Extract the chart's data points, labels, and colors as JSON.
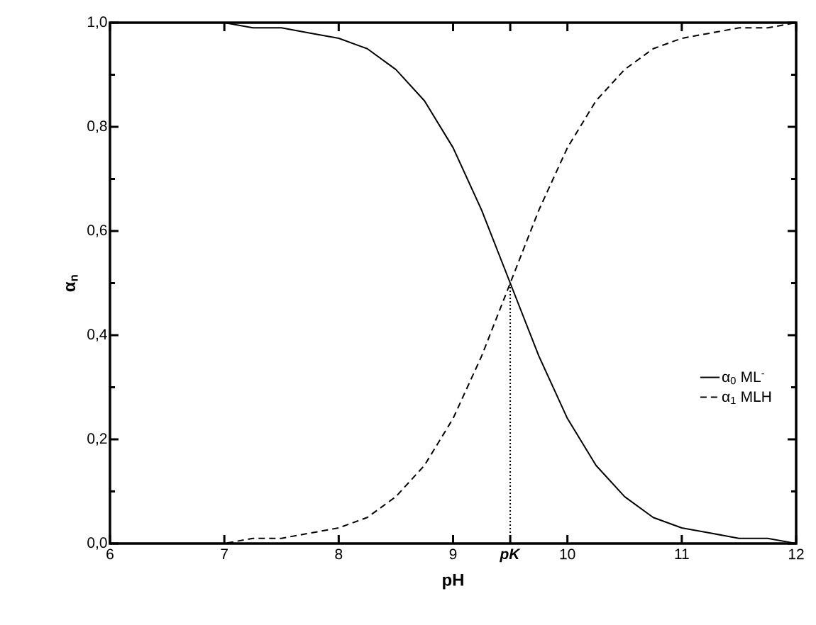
{
  "chart_data": {
    "type": "line",
    "xlabel": "pH",
    "ylabel": "α$_{n}$",
    "x": [
      6,
      6.25,
      6.5,
      6.75,
      7,
      7.25,
      7.5,
      7.75,
      8,
      8.25,
      8.5,
      8.75,
      9,
      9.25,
      9.5,
      9.75,
      10,
      10.25,
      10.5,
      10.75,
      11,
      11.25,
      11.5,
      11.75,
      12
    ],
    "series": [
      {
        "name": "α$_{0}$ ML$^{-}$",
        "color": "#000000",
        "line_style": "solid",
        "values": [
          1.0,
          1.0,
          1.0,
          1.0,
          1.0,
          0.99,
          0.99,
          0.98,
          0.97,
          0.95,
          0.91,
          0.85,
          0.76,
          0.64,
          0.5,
          0.36,
          0.24,
          0.15,
          0.09,
          0.05,
          0.03,
          0.02,
          0.01,
          0.01,
          0.0
        ]
      },
      {
        "name": "α$_{1}$ MLH",
        "color": "#000000",
        "line_style": "dashed",
        "values": [
          0.0,
          0.0,
          0.0,
          0.0,
          0.0,
          0.01,
          0.01,
          0.02,
          0.03,
          0.05,
          0.09,
          0.15,
          0.24,
          0.36,
          0.5,
          0.64,
          0.76,
          0.85,
          0.91,
          0.95,
          0.97,
          0.98,
          0.99,
          0.99,
          1.0
        ]
      },
      {
        "color": "#000000",
        "line_style": "dotted",
        "x": [
          9.5,
          9.5
        ],
        "values": [
          0,
          0.5
        ]
      }
    ],
    "xlim": [
      6,
      12
    ],
    "ylim": [
      0,
      1
    ],
    "xticks": [
      6,
      7,
      8,
      9,
      {
        "value": 9.5,
        "label": "*pK*"
      },
      10,
      11,
      12
    ],
    "yticks": [
      {
        "value": 0,
        "label": "0,0"
      },
      {
        "value": 0.2,
        "label": "0,2"
      },
      {
        "value": 0.4,
        "label": "0,4"
      },
      {
        "value": 0.6,
        "label": "0,6"
      },
      {
        "value": 0.8,
        "label": "0,8"
      },
      {
        "value": 1,
        "label": "1,0"
      }
    ],
    "grid": false,
    "legend": "right",
    "marker": "none"
  }
}
